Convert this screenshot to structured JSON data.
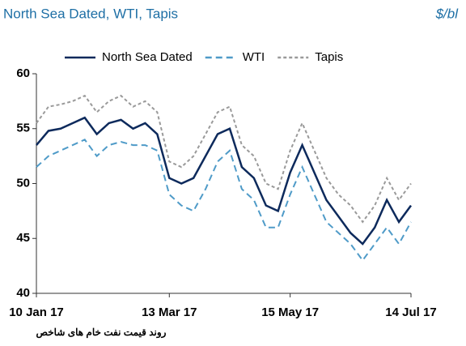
{
  "chart_data": {
    "type": "line",
    "title": "North Sea Dated, WTI, Tapis",
    "unit": "$/bl",
    "caption": "روند قیمت نفت خام های شاخص",
    "categories": [
      "10 Jan 17",
      null,
      null,
      null,
      null,
      null,
      null,
      null,
      null,
      null,
      null,
      "13 Mar 17",
      null,
      null,
      null,
      null,
      null,
      null,
      null,
      null,
      null,
      "15 May 17",
      null,
      null,
      null,
      null,
      null,
      null,
      null,
      null,
      null,
      "14 Jul 17"
    ],
    "series": [
      {
        "name": "North Sea Dated",
        "color": "#0d2a5c",
        "dash": "none",
        "values": [
          53.5,
          54.8,
          55,
          55.5,
          56,
          54.5,
          55.5,
          55.8,
          55,
          55.5,
          54.5,
          50.5,
          50,
          50.5,
          52.5,
          54.5,
          55,
          51.5,
          50.5,
          48,
          47.5,
          51,
          53.5,
          51,
          48.5,
          47,
          45.5,
          44.5,
          46,
          48.5,
          46.5,
          48
        ]
      },
      {
        "name": "WTI",
        "color": "#4f9bc8",
        "dash": "8 5",
        "values": [
          51.5,
          52.5,
          53,
          53.5,
          54,
          52.5,
          53.5,
          53.8,
          53.5,
          53.5,
          53,
          49,
          48,
          47.5,
          49.5,
          52,
          53,
          49.5,
          48.5,
          46,
          46,
          49,
          51.5,
          49,
          46.5,
          45.5,
          44.5,
          43,
          44.5,
          46,
          44.5,
          46.5
        ]
      },
      {
        "name": "Tapis",
        "color": "#9a9a9a",
        "dash": "4 3",
        "values": [
          55.5,
          57,
          57.2,
          57.5,
          58,
          56.5,
          57.5,
          58,
          57,
          57.5,
          56.5,
          52,
          51.5,
          52.5,
          54.5,
          56.5,
          57,
          53.5,
          52.5,
          50,
          49.5,
          53,
          55.5,
          53,
          50.5,
          49,
          48,
          46.5,
          48,
          50.5,
          48.5,
          50
        ]
      }
    ],
    "ylim": [
      40,
      60
    ],
    "yticks": [
      40,
      45,
      50,
      55,
      60
    ],
    "grid": false
  }
}
